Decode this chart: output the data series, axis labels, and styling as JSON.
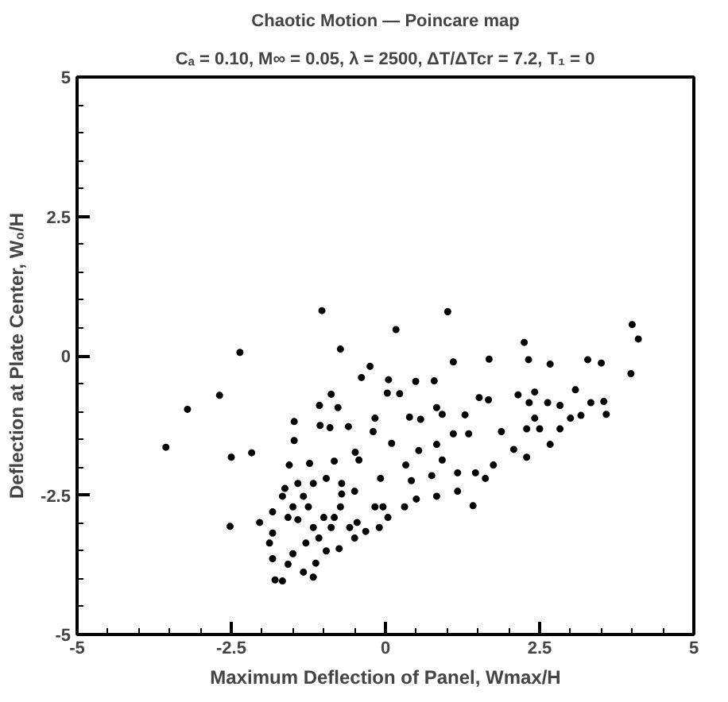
{
  "chart_data": {
    "type": "scatter",
    "title": "Chaotic Motion — Poincare map",
    "subtitle": "Cₐ = 0.10, M∞ = 0.05, λ = 2500, ΔT/ΔTcr = 7.2, T₁ = 0",
    "xlabel": "Maximum Deflection of Panel, Wmax/H",
    "ylabel": "Deflection at Plate Center, W₀/H",
    "xlim": [
      -5,
      5
    ],
    "ylim": [
      -5,
      5
    ],
    "xticks": [
      -5,
      -2.5,
      0,
      2.5,
      5
    ],
    "yticks": [
      -5,
      -2.5,
      0,
      2.5,
      5
    ],
    "grid": false,
    "marker": "circle",
    "series": [
      {
        "color": "#000000",
        "x": [
          -1.03,
          1.01,
          0.17,
          -2.36,
          -0.73,
          2.25,
          4.0,
          4.1,
          3.98,
          1.1,
          1.68,
          2.32,
          2.67,
          3.28,
          3.5,
          -0.25,
          -0.39,
          0.05,
          0.49,
          0.79,
          -2.69,
          -3.21,
          -3.56,
          -2.5,
          -2.17,
          -2.52,
          -0.88,
          0.03,
          0.23,
          -1.07,
          -0.77,
          -1.48,
          -1.48,
          -1.06,
          -0.9,
          -0.6,
          -1.56,
          -1.23,
          -0.83,
          -0.49,
          -0.43,
          -0.17,
          -0.2,
          0.1,
          0.39,
          0.57,
          0.83,
          0.92,
          1.29,
          1.52,
          1.67,
          1.35,
          1.1,
          0.83,
          0.54,
          0.92,
          0.33,
          -0.08,
          0.42,
          0.75,
          1.17,
          1.46,
          1.75,
          1.88,
          2.08,
          2.29,
          2.15,
          2.42,
          2.33,
          2.63,
          2.83,
          3.08,
          3.33,
          3.54,
          3.58,
          3.17,
          2.83,
          2.67,
          2.5,
          2.29,
          3.0,
          2.42,
          1.62,
          1.42,
          1.17,
          0.83,
          0.5,
          0.31,
          0.04,
          -0.17,
          -0.1,
          -0.32,
          -0.5,
          -0.75,
          -0.96,
          -0.46,
          -0.83,
          -0.73,
          -1.0,
          -1.17,
          -0.88,
          -0.5,
          -0.71,
          -0.96,
          -1.17,
          -1.42,
          -1.63,
          -1.33,
          -1.67,
          -1.83,
          -1.58,
          -1.42,
          -2.04,
          -1.83,
          -1.88,
          -1.83,
          -1.58,
          -1.33,
          -1.17,
          -1.67,
          -1.79,
          -1.5,
          -1.13,
          -1.29,
          -1.08,
          -1.25,
          -1.5,
          -0.71,
          -0.04,
          -0.58
        ],
        "values": [
          0.81,
          0.79,
          0.47,
          0.06,
          0.12,
          0.24,
          0.56,
          0.3,
          -0.32,
          -0.11,
          -0.06,
          -0.07,
          -0.15,
          -0.07,
          -0.13,
          -0.19,
          -0.39,
          -0.43,
          -0.46,
          -0.45,
          -0.71,
          -0.96,
          -1.64,
          -1.82,
          -1.74,
          -3.06,
          -0.69,
          -0.67,
          -0.68,
          -0.89,
          -0.93,
          -1.18,
          -1.52,
          -1.25,
          -1.29,
          -1.27,
          -1.96,
          -1.93,
          -1.89,
          -1.73,
          -1.87,
          -1.12,
          -1.36,
          -1.57,
          -1.1,
          -1.14,
          -0.93,
          -1.05,
          -1.06,
          -0.75,
          -0.79,
          -1.4,
          -1.4,
          -1.59,
          -1.7,
          -1.87,
          -1.96,
          -2.2,
          -2.24,
          -2.15,
          -2.1,
          -2.1,
          -1.96,
          -1.36,
          -1.68,
          -1.82,
          -0.7,
          -0.65,
          -0.84,
          -0.84,
          -0.89,
          -0.61,
          -0.84,
          -0.82,
          -1.05,
          -1.07,
          -1.31,
          -1.59,
          -1.31,
          -1.31,
          -1.12,
          -1.12,
          -2.2,
          -2.69,
          -2.43,
          -2.52,
          -2.57,
          -2.71,
          -2.9,
          -2.71,
          -3.08,
          -3.15,
          -3.27,
          -3.46,
          -3.5,
          -2.99,
          -2.9,
          -2.71,
          -2.9,
          -3.08,
          -3.08,
          -2.43,
          -2.29,
          -2.2,
          -2.29,
          -2.29,
          -2.38,
          -2.52,
          -2.52,
          -2.8,
          -2.9,
          -2.94,
          -2.99,
          -3.18,
          -3.36,
          -3.64,
          -3.74,
          -3.88,
          -3.97,
          -4.04,
          -4.02,
          -3.55,
          -3.72,
          -3.36,
          -3.27,
          -2.71,
          -2.71,
          -2.48,
          -2.71,
          -3.08
        ]
      }
    ]
  }
}
